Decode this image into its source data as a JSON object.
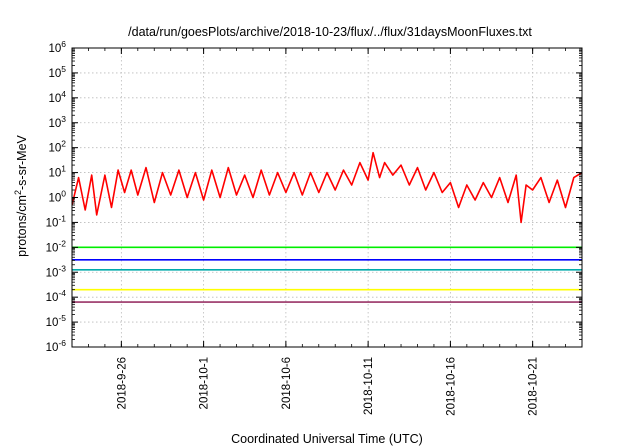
{
  "chart_data": {
    "type": "line",
    "title": "/data/run/goesPlots/archive/2018-10-23/flux/../flux/31daysMoonFluxes.txt",
    "xlabel": "Coordinated Universal Time (UTC)",
    "ylabel": {
      "pre": "protons/cm",
      "sup": "2",
      "post": "-s-sr-MeV"
    },
    "yscale": "log",
    "grid": true,
    "xlim": [
      0,
      31
    ],
    "x_units": "days since 2018-09-23 00:00 UTC",
    "ylim_exponent": [
      -6,
      6
    ],
    "y_ticks": [
      {
        "base": "10",
        "exp": "-6",
        "v": -6
      },
      {
        "base": "10",
        "exp": "-5",
        "v": -5
      },
      {
        "base": "10",
        "exp": "-4",
        "v": -4
      },
      {
        "base": "10",
        "exp": "-3",
        "v": -3
      },
      {
        "base": "10",
        "exp": "-2",
        "v": -2
      },
      {
        "base": "10",
        "exp": "-1",
        "v": -1
      },
      {
        "base": "10",
        "exp": "0",
        "v": 0
      },
      {
        "base": "10",
        "exp": "1",
        "v": 1
      },
      {
        "base": "10",
        "exp": "2",
        "v": 2
      },
      {
        "base": "10",
        "exp": "3",
        "v": 3
      },
      {
        "base": "10",
        "exp": "4",
        "v": 4
      },
      {
        "base": "10",
        "exp": "5",
        "v": 5
      },
      {
        "base": "10",
        "exp": "6",
        "v": 6
      }
    ],
    "x_ticks": [
      {
        "label": "2018-9-26",
        "x": 3
      },
      {
        "label": "2018-10-1",
        "x": 8
      },
      {
        "label": "2018-10-6",
        "x": 13
      },
      {
        "label": "2018-10-11",
        "x": 18
      },
      {
        "label": "2018-10-16",
        "x": 23
      },
      {
        "label": "2018-10-21",
        "x": 28
      }
    ],
    "series": [
      {
        "color": "#ff0000",
        "x": [
          0.0,
          0.4,
          0.8,
          1.2,
          1.5,
          2.0,
          2.4,
          2.8,
          3.2,
          3.6,
          4.0,
          4.5,
          5.0,
          5.5,
          6.0,
          6.5,
          7.0,
          7.5,
          8.0,
          8.5,
          9.0,
          9.5,
          10.0,
          10.5,
          11.0,
          11.5,
          12.0,
          12.5,
          13.0,
          13.5,
          14.0,
          14.5,
          15.0,
          15.5,
          16.0,
          16.5,
          17.0,
          17.5,
          18.0,
          18.3,
          18.7,
          19.0,
          19.5,
          20.0,
          20.5,
          21.0,
          21.5,
          22.0,
          22.5,
          23.0,
          23.5,
          24.0,
          24.5,
          25.0,
          25.5,
          26.0,
          26.5,
          27.0,
          27.3,
          27.6,
          28.0,
          28.5,
          29.0,
          29.5,
          30.0,
          30.5,
          31.0
        ],
        "y_exp": [
          -0.3,
          0.8,
          -0.5,
          0.9,
          -0.7,
          0.9,
          -0.4,
          1.1,
          0.2,
          1.1,
          0.1,
          1.2,
          -0.2,
          1.0,
          0.1,
          1.1,
          0.0,
          1.0,
          -0.1,
          1.1,
          0.0,
          1.2,
          0.1,
          0.9,
          0.0,
          1.1,
          0.1,
          1.0,
          0.2,
          1.0,
          0.1,
          1.0,
          0.2,
          1.0,
          0.3,
          1.1,
          0.5,
          1.4,
          0.7,
          1.8,
          0.8,
          1.4,
          0.9,
          1.3,
          0.5,
          1.2,
          0.3,
          1.0,
          0.2,
          0.6,
          -0.4,
          0.5,
          -0.1,
          0.6,
          0.0,
          0.8,
          -0.2,
          0.9,
          -1.0,
          0.5,
          0.3,
          0.8,
          -0.2,
          0.7,
          -0.4,
          0.8,
          1.0
        ]
      },
      {
        "color": "#00ee00",
        "x": [
          0,
          31
        ],
        "y_exp": [
          -2.0,
          -2.0
        ]
      },
      {
        "color": "#0000ff",
        "x": [
          0,
          31
        ],
        "y_exp": [
          -2.5,
          -2.5
        ]
      },
      {
        "color": "#00aaaa",
        "x": [
          0,
          31
        ],
        "y_exp": [
          -2.9,
          -2.9
        ]
      },
      {
        "color": "#ffff00",
        "x": [
          0,
          31
        ],
        "y_exp": [
          -3.7,
          -3.7
        ]
      },
      {
        "color": "#993366",
        "x": [
          0,
          31
        ],
        "y_exp": [
          -4.2,
          -4.2
        ]
      }
    ]
  }
}
